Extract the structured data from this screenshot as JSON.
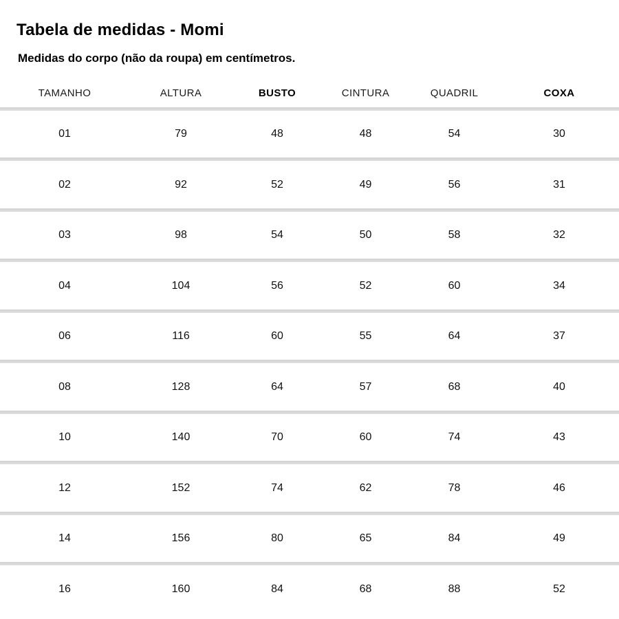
{
  "chart_data": {
    "type": "table",
    "title": "Tabela de medidas - Momi",
    "subtitle": "Medidas do corpo (não da roupa) em centímetros.",
    "unit": "cm",
    "columns": [
      "TAMANHO",
      "ALTURA",
      "BUSTO",
      "CINTURA",
      "QUADRIL",
      "COXA"
    ],
    "bold_columns": [
      2,
      5
    ],
    "rows": [
      [
        "01",
        "79",
        "48",
        "48",
        "54",
        "30"
      ],
      [
        "02",
        "92",
        "52",
        "49",
        "56",
        "31"
      ],
      [
        "03",
        "98",
        "54",
        "50",
        "58",
        "32"
      ],
      [
        "04",
        "104",
        "56",
        "52",
        "60",
        "34"
      ],
      [
        "06",
        "116",
        "60",
        "55",
        "64",
        "37"
      ],
      [
        "08",
        "128",
        "64",
        "57",
        "68",
        "40"
      ],
      [
        "10",
        "140",
        "70",
        "60",
        "74",
        "43"
      ],
      [
        "12",
        "152",
        "74",
        "62",
        "78",
        "46"
      ],
      [
        "14",
        "156",
        "80",
        "65",
        "84",
        "49"
      ],
      [
        "16",
        "160",
        "84",
        "68",
        "88",
        "52"
      ]
    ]
  },
  "colors": {
    "background": "#ffffff",
    "text": "#000000",
    "divider": "#d9d9d9"
  }
}
